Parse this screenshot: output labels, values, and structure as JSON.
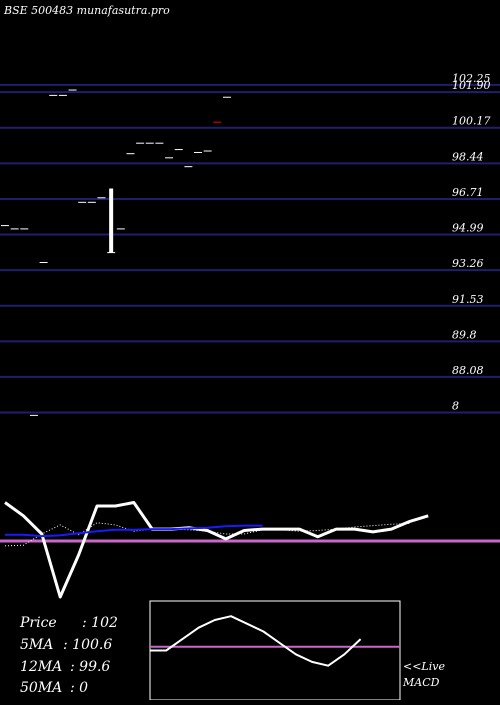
{
  "header": {
    "title": "BSE 500483 munafasutra.pro"
  },
  "colors": {
    "background": "#000000",
    "gridline": "#1f1f6e",
    "candle": "#ffffff",
    "highlight_candle": "#ff0000",
    "price_line": "#ffffff",
    "ma_short": "#ffffff",
    "ma_long": "#1a1aff",
    "baseline": "#cc66cc",
    "text": "#ffffff"
  },
  "chart_data": [
    {
      "type": "candlestick",
      "y_axis_labels": [
        "102.25",
        "101.90",
        "100.17",
        "98.44",
        "96.71",
        "94.99",
        "93.26",
        "91.53",
        "89.8",
        "88.08",
        "8"
      ],
      "y_axis_levels": [
        102.25,
        101.9,
        100.17,
        98.44,
        96.71,
        94.99,
        93.26,
        91.53,
        89.8,
        88.08,
        86.35
      ],
      "ylim": [
        85.5,
        103.7
      ],
      "candles": [
        {
          "i": 0,
          "open": 95.42,
          "high": 95.42,
          "low": 95.42,
          "close": 95.42
        },
        {
          "i": 1,
          "open": 95.26,
          "high": 95.26,
          "low": 95.26,
          "close": 95.26
        },
        {
          "i": 2,
          "open": 95.26,
          "high": 95.26,
          "low": 95.26,
          "close": 95.26
        },
        {
          "i": 3,
          "open": 86.21,
          "high": 86.21,
          "low": 86.21,
          "close": 86.21
        },
        {
          "i": 4,
          "open": 93.63,
          "high": 93.63,
          "low": 93.63,
          "close": 93.63
        },
        {
          "i": 5,
          "open": 101.74,
          "high": 101.74,
          "low": 101.74,
          "close": 101.74
        },
        {
          "i": 6,
          "open": 101.74,
          "high": 101.74,
          "low": 101.74,
          "close": 101.74
        },
        {
          "i": 7,
          "open": 102.0,
          "high": 102.0,
          "low": 102.0,
          "close": 102.0
        },
        {
          "i": 8,
          "open": 96.55,
          "high": 96.55,
          "low": 96.55,
          "close": 96.55
        },
        {
          "i": 9,
          "open": 96.55,
          "high": 96.55,
          "low": 96.55,
          "close": 96.55
        },
        {
          "i": 10,
          "open": 96.77,
          "high": 96.77,
          "low": 96.77,
          "close": 96.77
        },
        {
          "i": 11,
          "open": 96.77,
          "high": 97.22,
          "low": 94.11,
          "close": 94.11
        },
        {
          "i": 12,
          "open": 95.26,
          "high": 95.26,
          "low": 95.26,
          "close": 95.26
        },
        {
          "i": 13,
          "open": 98.91,
          "high": 98.91,
          "low": 98.91,
          "close": 98.91
        },
        {
          "i": 14,
          "open": 99.42,
          "high": 99.42,
          "low": 99.42,
          "close": 99.42
        },
        {
          "i": 15,
          "open": 99.42,
          "high": 99.42,
          "low": 99.42,
          "close": 99.42
        },
        {
          "i": 16,
          "open": 99.42,
          "high": 99.42,
          "low": 99.42,
          "close": 99.42
        },
        {
          "i": 17,
          "open": 98.71,
          "high": 98.71,
          "low": 98.71,
          "close": 98.71
        },
        {
          "i": 18,
          "open": 99.11,
          "high": 99.11,
          "low": 99.11,
          "close": 99.11
        },
        {
          "i": 19,
          "open": 98.28,
          "high": 98.28,
          "low": 98.28,
          "close": 98.28
        },
        {
          "i": 20,
          "open": 98.97,
          "high": 98.97,
          "low": 98.97,
          "close": 98.97
        },
        {
          "i": 21,
          "open": 99.04,
          "high": 99.04,
          "low": 99.04,
          "close": 99.04
        },
        {
          "i": 22,
          "open": 100.44,
          "high": 100.44,
          "low": 100.44,
          "close": 100.44
        },
        {
          "i": 23,
          "open": 101.65,
          "high": 101.65,
          "low": 101.65,
          "close": 101.65
        }
      ],
      "highlight_index": 22
    },
    {
      "type": "line",
      "panel": "moving-averages",
      "series": [
        {
          "key": "price",
          "values": [
            86.5,
            84.6,
            82.0,
            73.0,
            79.0,
            86.0,
            86.0,
            86.5,
            82.7,
            82.7,
            82.9,
            82.5,
            81.3,
            82.5,
            82.7,
            82.7,
            82.7,
            81.6,
            82.7,
            82.7,
            82.3,
            82.7,
            83.8,
            84.6
          ]
        },
        {
          "key": "ma_short",
          "values": [
            80.3,
            80.4,
            82.0,
            83.3,
            81.9,
            83.6,
            83.3,
            82.4,
            82.7,
            82.7,
            82.6,
            82.4,
            82.0,
            82.0,
            82.6,
            82.6,
            82.4,
            82.5,
            82.7,
            83.0,
            83.2,
            83.4,
            83.5
          ]
        },
        {
          "key": "ma_long",
          "values": [
            81.9,
            81.9,
            81.7,
            81.8,
            82.1,
            82.4,
            82.6,
            82.6,
            82.7,
            82.7,
            82.8,
            82.9,
            83.1,
            83.2,
            83.2
          ]
        }
      ],
      "baseline": 81.0,
      "ylim": [
        69,
        88
      ]
    },
    {
      "type": "line",
      "panel": "macd",
      "series": [
        {
          "key": "macd",
          "values": [
            0.3,
            0.3,
            0.6,
            0.9,
            1.1,
            1.2,
            1.0,
            0.8,
            0.5,
            0.2,
            0.0,
            -0.1,
            0.2,
            0.6
          ]
        }
      ],
      "signal_level": 0.4,
      "ylim": [
        -1.0,
        1.6
      ]
    }
  ],
  "legend": {
    "price_label": "Price",
    "price_value": ": 102",
    "ma5_label": "5MA",
    "ma5_value": ": 100.6",
    "ma12_label": "12MA",
    "ma12_value": ": 99.6",
    "ma50_label": "50MA",
    "ma50_value": ": 0"
  },
  "macd_panel": {
    "label_line1": "<<Live",
    "label_line2": "MACD"
  }
}
